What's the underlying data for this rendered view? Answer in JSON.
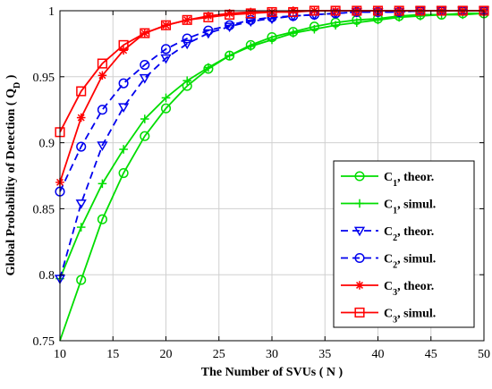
{
  "chart_data": {
    "type": "line",
    "xlabel": "The Number of SVUs ( N )",
    "ylabel": "Global Probability of Detection ( Q_D )",
    "ylabel_prefix": "Global Probability of Detection ( Q",
    "ylabel_sub": "D",
    "ylabel_suffix": " )",
    "xlim": [
      10,
      50
    ],
    "ylim": [
      0.75,
      1
    ],
    "xticks": [
      10,
      15,
      20,
      25,
      30,
      35,
      40,
      45,
      50
    ],
    "yticks": [
      0.75,
      0.8,
      0.85,
      0.9,
      0.95,
      1
    ],
    "ytick_labels": [
      "0.75",
      "0.8",
      "0.85",
      "0.9",
      "0.95",
      "1"
    ],
    "grid": true,
    "legend_position": "right",
    "x": [
      10,
      12,
      14,
      16,
      18,
      20,
      22,
      24,
      26,
      28,
      30,
      32,
      34,
      36,
      38,
      40,
      42,
      44,
      46,
      48,
      50
    ],
    "series": [
      {
        "name": "C_1, theor.",
        "legend_main": "C",
        "legend_sub": "1",
        "legend_tail": ", theor.",
        "color": "#00dd00",
        "dash": "solid",
        "marker": "circle",
        "values": [
          0.745,
          0.796,
          0.842,
          0.877,
          0.905,
          0.926,
          0.943,
          0.956,
          0.966,
          0.974,
          0.98,
          0.984,
          0.988,
          0.991,
          0.993,
          0.994,
          0.996,
          0.997,
          0.997,
          0.998,
          0.998
        ]
      },
      {
        "name": "C_1, simul.",
        "legend_main": "C",
        "legend_sub": "1",
        "legend_tail": ", simul.",
        "color": "#00dd00",
        "dash": "solid",
        "marker": "plus",
        "values": [
          0.797,
          0.836,
          0.869,
          0.895,
          0.918,
          0.934,
          0.947,
          0.957,
          0.966,
          0.973,
          0.978,
          0.983,
          0.986,
          0.989,
          0.991,
          0.993,
          0.995,
          0.996,
          0.997,
          0.997,
          0.998
        ]
      },
      {
        "name": "C_2, theor.",
        "legend_main": "C",
        "legend_sub": "2",
        "legend_tail": ", theor.",
        "color": "#0000ee",
        "dash": "dashed",
        "marker": "triangle-down",
        "values": [
          0.797,
          0.854,
          0.898,
          0.927,
          0.949,
          0.964,
          0.975,
          0.983,
          0.988,
          0.992,
          0.994,
          0.996,
          0.997,
          0.998,
          0.999,
          0.999,
          0.999,
          1.0,
          1.0,
          1.0,
          1.0
        ]
      },
      {
        "name": "C_2, simul.",
        "legend_main": "C",
        "legend_sub": "2",
        "legend_tail": ", simul.",
        "color": "#0000ee",
        "dash": "dashed",
        "marker": "circle",
        "values": [
          0.863,
          0.897,
          0.925,
          0.945,
          0.959,
          0.971,
          0.979,
          0.985,
          0.989,
          0.993,
          0.995,
          0.996,
          0.997,
          0.998,
          0.999,
          0.999,
          0.999,
          1.0,
          1.0,
          1.0,
          1.0
        ]
      },
      {
        "name": "C_3, theor.",
        "legend_main": "C",
        "legend_sub": "3",
        "legend_tail": ", theor.",
        "color": "#ff0000",
        "dash": "solid",
        "marker": "asterisk",
        "values": [
          0.87,
          0.919,
          0.951,
          0.97,
          0.983,
          0.989,
          0.993,
          0.996,
          0.998,
          0.999,
          0.999,
          1.0,
          1.0,
          1.0,
          1.0,
          1.0,
          1.0,
          1.0,
          1.0,
          1.0,
          1.0
        ]
      },
      {
        "name": "C_3, simul.",
        "legend_main": "C",
        "legend_sub": "3",
        "legend_tail": ", simul.",
        "color": "#ff0000",
        "dash": "solid",
        "marker": "square",
        "values": [
          0.908,
          0.939,
          0.96,
          0.974,
          0.983,
          0.989,
          0.993,
          0.995,
          0.997,
          0.998,
          0.999,
          0.999,
          1.0,
          1.0,
          1.0,
          1.0,
          1.0,
          1.0,
          1.0,
          1.0,
          1.0
        ]
      }
    ]
  }
}
